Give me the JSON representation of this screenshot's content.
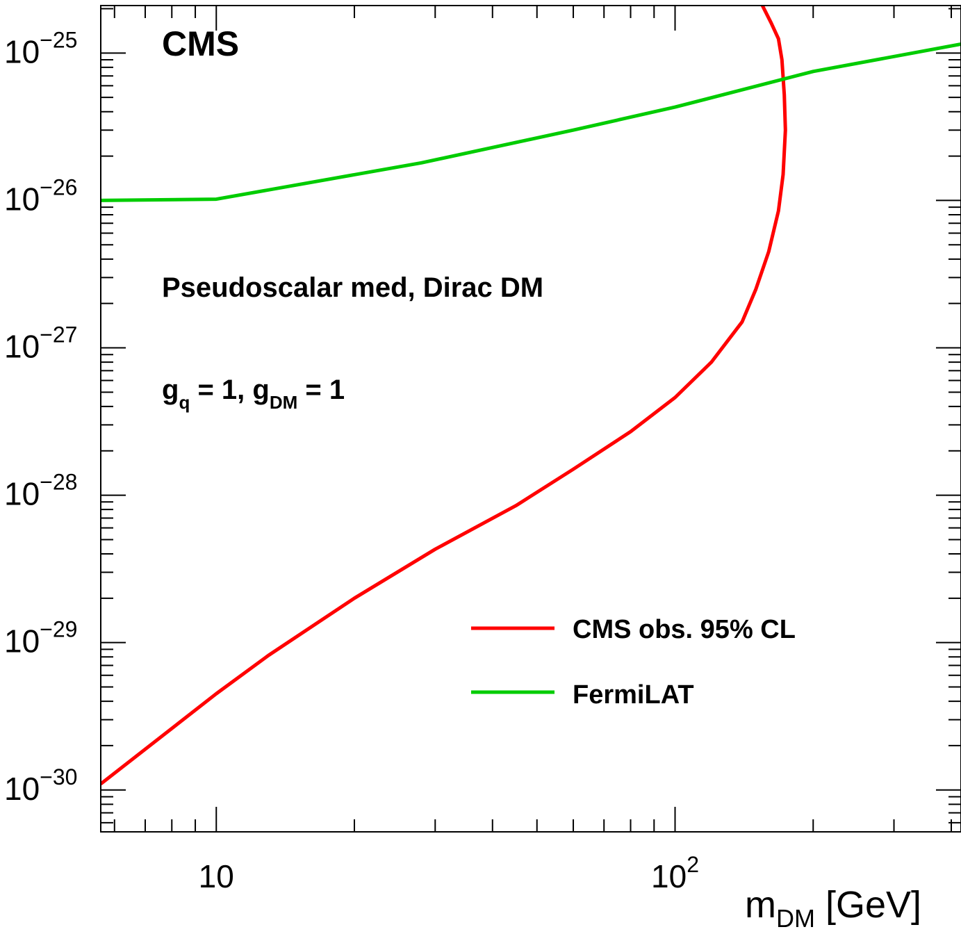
{
  "chart_data": {
    "type": "line",
    "xscale": "log",
    "yscale": "log",
    "xlim": [
      5.6,
      420
    ],
    "ylim": [
      5.2e-31,
      2.1e-25
    ],
    "xlabel_main": "m",
    "xlabel_sub": "DM",
    "xlabel_unit": " [GeV]",
    "ylabel": "",
    "x_ticks": [
      {
        "value": 10,
        "base": "10",
        "exp": ""
      },
      {
        "value": 100,
        "base": "10",
        "exp": "2"
      }
    ],
    "y_ticks": [
      {
        "value": 1e-25,
        "base": "10",
        "exp": "−25"
      },
      {
        "value": 1e-26,
        "base": "10",
        "exp": "−26"
      },
      {
        "value": 1e-27,
        "base": "10",
        "exp": "−27"
      },
      {
        "value": 1e-28,
        "base": "10",
        "exp": "−28"
      },
      {
        "value": 1e-29,
        "base": "10",
        "exp": "−29"
      },
      {
        "value": 1e-30,
        "base": "10",
        "exp": "−30"
      }
    ],
    "experiment_label": "CMS",
    "annotation_model": "Pseudoscalar med, Dirac DM",
    "annotation_couplings": {
      "g": "g",
      "q": "q",
      "mid": " = 1, ",
      "g2": "g",
      "dm": "DM",
      "end": " = 1"
    },
    "legend_position": "lower-right",
    "series": [
      {
        "name": "CMS obs. 95% CL",
        "color": "#ff0000",
        "points": [
          [
            5.6,
            1.1e-30
          ],
          [
            10,
            4.5e-30
          ],
          [
            13,
            8.2e-30
          ],
          [
            20,
            2e-29
          ],
          [
            30,
            4.3e-29
          ],
          [
            45,
            8.5e-29
          ],
          [
            60,
            1.5e-28
          ],
          [
            80,
            2.7e-28
          ],
          [
            100,
            4.6e-28
          ],
          [
            120,
            8e-28
          ],
          [
            140,
            1.5e-27
          ],
          [
            150,
            2.5e-27
          ],
          [
            160,
            4.5e-27
          ],
          [
            168,
            8.5e-27
          ],
          [
            172,
            1.5e-26
          ],
          [
            174,
            3e-26
          ],
          [
            173,
            5.2e-26
          ],
          [
            171,
            9e-26
          ],
          [
            168,
            1.25e-25
          ],
          [
            162,
            1.6e-25
          ],
          [
            155,
            2.1e-25
          ]
        ]
      },
      {
        "name": "FermiLAT",
        "color": "#00cc00",
        "points": [
          [
            5.6,
            1e-26
          ],
          [
            10,
            1.02e-26
          ],
          [
            28,
            1.8e-26
          ],
          [
            60,
            3e-26
          ],
          [
            100,
            4.3e-26
          ],
          [
            200,
            7.5e-26
          ],
          [
            420,
            1.15e-25
          ]
        ]
      }
    ]
  }
}
